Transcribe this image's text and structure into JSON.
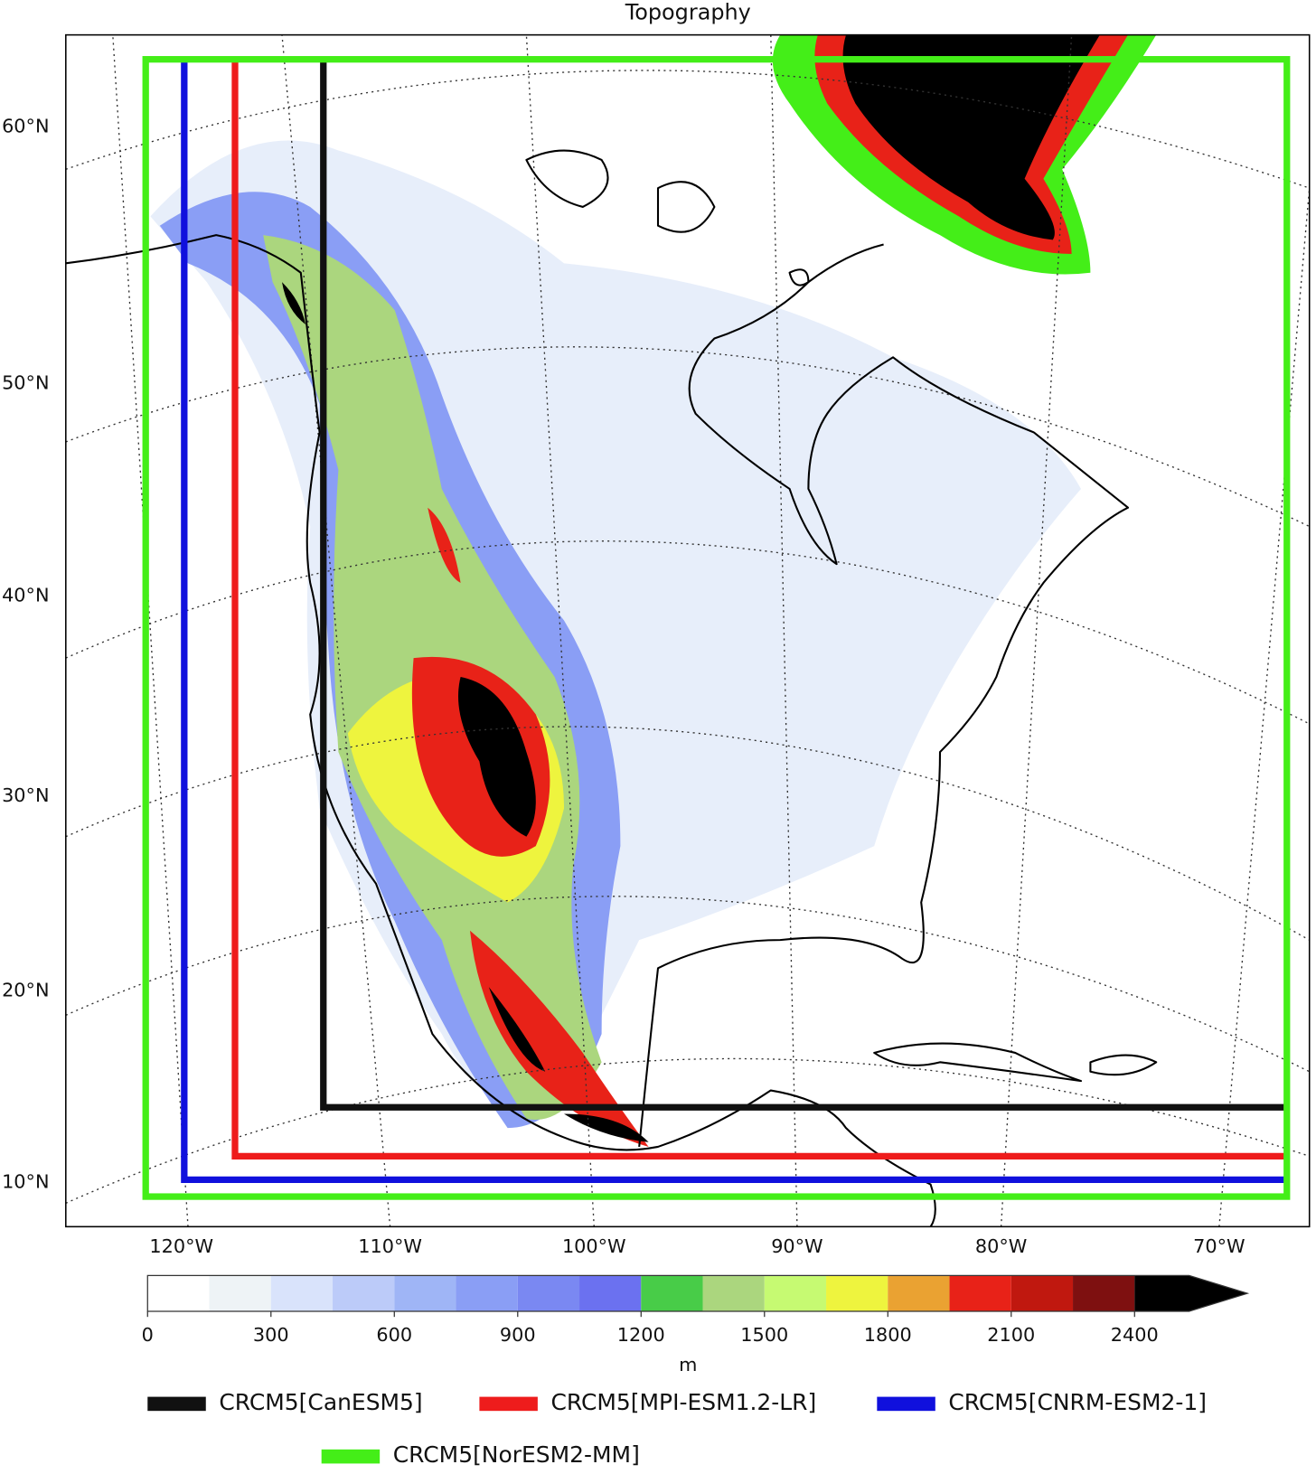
{
  "title": "Topography",
  "lat_labels": [
    "60°N",
    "50°N",
    "40°N",
    "30°N",
    "20°N",
    "10°N"
  ],
  "lon_labels": [
    "120°W",
    "110°W",
    "100°W",
    "90°W",
    "80°W",
    "70°W"
  ],
  "colorbar": {
    "unit": "m",
    "lim": [
      0,
      2400
    ],
    "bounds": [
      0,
      150,
      300,
      450,
      600,
      750,
      900,
      1050,
      1200,
      1350,
      1500,
      1650,
      1800,
      1950,
      2100,
      2250,
      2400
    ],
    "colors": [
      "#ffffff",
      "#eef3f6",
      "#d9e3fb",
      "#bccbf9",
      "#9fb5f6",
      "#8a9ef5",
      "#7a88f2",
      "#6b71f0",
      "#48cc48",
      "#abd67e",
      "#c6fa72",
      "#eef43e",
      "#eaa232",
      "#e82218",
      "#c0180f",
      "#7e1010"
    ],
    "over_color": "#000000",
    "ticks": [
      0,
      300,
      600,
      900,
      1200,
      1500,
      1800,
      2100,
      2400
    ]
  },
  "domains": [
    {
      "name": "CRCM5[CanESM5]",
      "color": "#111111"
    },
    {
      "name": "CRCM5[MPI-ESM1.2-LR]",
      "color": "#ee1c1c"
    },
    {
      "name": "CRCM5[CNRM-ESM2-1]",
      "color": "#1010dd"
    },
    {
      "name": "CRCM5[NorESM2-MM]",
      "color": "#44ee18"
    }
  ]
}
